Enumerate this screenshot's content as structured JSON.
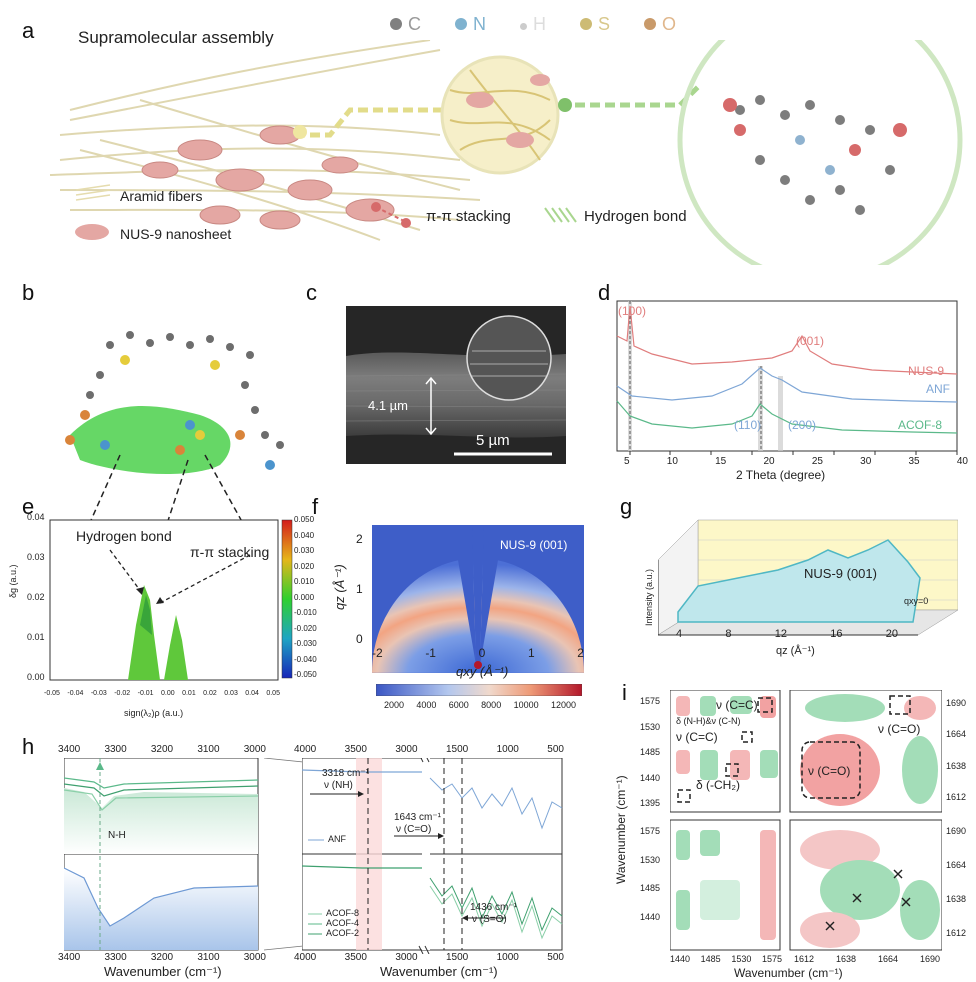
{
  "panels": {
    "a": "a",
    "b": "b",
    "c": "c",
    "d": "d",
    "e": "e",
    "f": "f",
    "g": "g",
    "h": "h",
    "i": "i"
  },
  "a": {
    "title": "Supramolecular assembly",
    "legend_atoms": [
      {
        "sym": "C",
        "color": "#808080"
      },
      {
        "sym": "N",
        "color": "#7fb2cf"
      },
      {
        "sym": "H",
        "color": "#cccccc"
      },
      {
        "sym": "S",
        "color": "#cdbb74"
      },
      {
        "sym": "O",
        "color": "#c99a6a"
      }
    ],
    "aramid": "Aramid fibers",
    "nus": "NUS-9 nanosheet",
    "pipi": "π-π stacking",
    "hbond": "Hydrogen bond"
  },
  "c": {
    "thickness": "4.1 µm",
    "scale": "5 µm"
  },
  "d": {
    "xlabel": "2 Theta (degree)",
    "ticks": [
      "5",
      "10",
      "15",
      "20",
      "25",
      "30",
      "35",
      "40"
    ],
    "peaks": {
      "p100": "(100)",
      "p001": "(001)",
      "p110": "(110)",
      "p200": "(200)"
    },
    "series": [
      {
        "name": "NUS-9",
        "color": "#e07d7d"
      },
      {
        "name": "ANF",
        "color": "#7ea6d6"
      },
      {
        "name": "ACOF-8",
        "color": "#5bb98a"
      }
    ]
  },
  "e": {
    "hb": "Hydrogen bond",
    "pp": "π-π stacking",
    "ylabel": "δg (a.u.)",
    "xlabel": "sign(λ₂)ρ (a.u.)",
    "yticks": [
      "0.00",
      "0.01",
      "0.02",
      "0.03",
      "0.04"
    ],
    "xticks": [
      "-0.05",
      "-0.04",
      "-0.03",
      "-0.02",
      "-0.01",
      "0.00",
      "0.01",
      "0.02",
      "0.03",
      "0.04",
      "0.05"
    ],
    "cbar": [
      "0.050",
      "0.040",
      "0.030",
      "0.020",
      "0.010",
      "0.000",
      "-0.010",
      "-0.020",
      "-0.030",
      "-0.040",
      "-0.050"
    ]
  },
  "f": {
    "annot": "NUS-9 (001)",
    "ylabel": "qz (Å⁻¹)",
    "xlabel": "qxy (Å⁻¹)",
    "xticks": [
      "-2",
      "-1",
      "0",
      "1",
      "2"
    ],
    "yticks": [
      "0",
      "1",
      "2"
    ],
    "cbar": [
      "2000",
      "4000",
      "6000",
      "8000",
      "10000",
      "12000"
    ]
  },
  "g": {
    "annot": "NUS-9 (001)",
    "ylabel": "Intensity (a.u.)",
    "xlabel": "qz (Å⁻¹)",
    "qxy": "qxy=0",
    "xticks": [
      "4",
      "8",
      "12",
      "16",
      "20"
    ]
  },
  "h": {
    "left_top_ticks": [
      "3400",
      "3300",
      "3200",
      "3100",
      "3000"
    ],
    "right_top_ticks": [
      "4000",
      "3500",
      "3000",
      "1500",
      "1000",
      "500"
    ],
    "nh": "N-H",
    "xlabel": "Wavenumber (cm⁻¹)",
    "a3318": "3318 cm⁻¹",
    "nu_nh": "ν (NH)",
    "a1643": "1643 cm⁻¹",
    "nu_co": "ν (C=O)",
    "a1436": "1436 cm⁻¹",
    "nu_so": "ν (S=O)",
    "anf": "ANF",
    "legend": [
      "ACOF-8",
      "ACOF-4",
      "ACOF-2"
    ]
  },
  "i": {
    "ylabel": "Wavenumber (cm⁻¹)",
    "xlabel": "Wavenumber (cm⁻¹)",
    "lyticks": [
      "1575",
      "1530",
      "1485",
      "1440",
      "1395"
    ],
    "lyticks2": [
      "1575",
      "1530",
      "1485",
      "1440"
    ],
    "ryticks": [
      "1690",
      "1664",
      "1638",
      "1612"
    ],
    "lxticks": [
      "1440",
      "1485",
      "1530",
      "1575"
    ],
    "rxticks": [
      "1612",
      "1638",
      "1664",
      "1690"
    ],
    "cc1": "ν (C=C)",
    "nh_cn": "δ (N-H)&ν (C-N)",
    "cc2": "ν (C=C)",
    "ch2": "δ (-CH₂)",
    "co1": "ν (C=O)",
    "co2": "ν (C=O)"
  }
}
